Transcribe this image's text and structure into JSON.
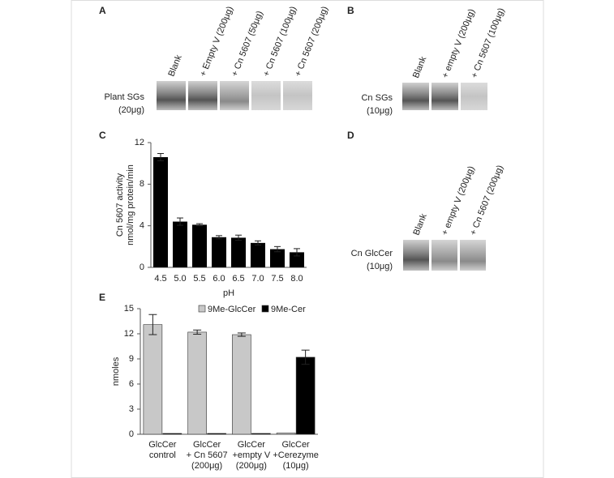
{
  "panels": {
    "A": {
      "label": "A",
      "lanes": [
        "Blank",
        "+ Empty V (200μg)",
        "+ Cn 5607 (50μg)",
        "+ Cn 5607 (100μg)",
        "+ Cn 5607 (200μg)"
      ],
      "sample": [
        "Plant SGs",
        "(20μg)"
      ]
    },
    "B": {
      "label": "B",
      "lanes": [
        "Blank",
        "+ empty V (200μg)",
        "+ Cn 5607 (100μg)"
      ],
      "sample": [
        "Cn SGs",
        "(10μg)"
      ]
    },
    "D": {
      "label": "D",
      "lanes": [
        "Blank",
        "+ empty V (200μg)",
        "+ Cn 5607 (200μg)"
      ],
      "sample": [
        "Cn GlcCer",
        "(10μg)"
      ]
    }
  },
  "chart_data": [
    {
      "type": "bar",
      "panel_label": "C",
      "xlabel": "pH",
      "ylabel": [
        "Cn 5607 activity",
        "nmol/mg protein/min"
      ],
      "categories": [
        "4.5",
        "5.0",
        "5.5",
        "6.0",
        "6.5",
        "7.0",
        "7.5",
        "8.0"
      ],
      "values": [
        10.6,
        4.4,
        4.1,
        2.9,
        2.85,
        2.35,
        1.75,
        1.45
      ],
      "errors": [
        0.35,
        0.35,
        0.1,
        0.15,
        0.25,
        0.2,
        0.25,
        0.35
      ],
      "color": "#000000",
      "ylim": [
        0,
        12
      ],
      "yticks": [
        0,
        4,
        8,
        12
      ]
    },
    {
      "type": "grouped_bar",
      "panel_label": "E",
      "ylabel": "nmoles",
      "categories": [
        [
          "GlcCer",
          "control"
        ],
        [
          "GlcCer",
          "+ Cn 5607",
          "(200μg)"
        ],
        [
          "GlcCer",
          "+empty V",
          "(200μg)"
        ],
        [
          "GlcCer",
          "+Cerezyme",
          "(10μg)"
        ]
      ],
      "series": [
        {
          "name": "9Me-GlcCer",
          "color": "#c8c8c8",
          "values": [
            13.1,
            12.2,
            11.9,
            0.15
          ],
          "errors": [
            1.2,
            0.25,
            0.2,
            null
          ]
        },
        {
          "name": "9Me-Cer",
          "color": "#000000",
          "values": [
            0.1,
            0.1,
            0.1,
            9.2
          ],
          "errors": [
            null,
            null,
            null,
            0.85
          ]
        }
      ],
      "ylim": [
        0,
        15
      ],
      "yticks": [
        0,
        3,
        6,
        9,
        12,
        15
      ],
      "legend": "top"
    }
  ]
}
